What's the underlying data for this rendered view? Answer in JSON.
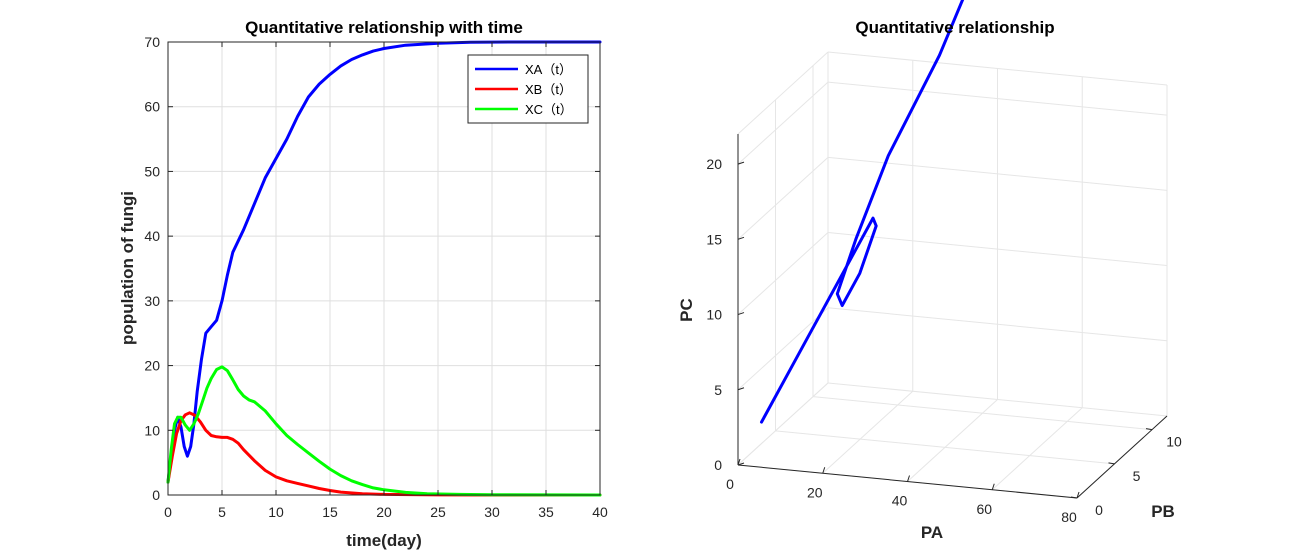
{
  "chart_data": [
    {
      "type": "line",
      "title": "Quantitative relationship with time",
      "xlabel": "time(day)",
      "ylabel": "population of fungi",
      "xlim": [
        0,
        40
      ],
      "ylim": [
        0,
        70
      ],
      "xticks": [
        "0",
        "5",
        "10",
        "15",
        "20",
        "25",
        "30",
        "35",
        "40"
      ],
      "yticks": [
        "0",
        "10",
        "20",
        "30",
        "40",
        "50",
        "60",
        "70"
      ],
      "grid": true,
      "legend": "top-right",
      "series": [
        {
          "name": "XA（t）",
          "color": "#0000ff",
          "points": [
            [
              0,
              2
            ],
            [
              0.3,
              6
            ],
            [
              0.6,
              10
            ],
            [
              0.9,
              12
            ],
            [
              1.2,
              10.5
            ],
            [
              1.5,
              7.5
            ],
            [
              1.8,
              6
            ],
            [
              2.1,
              7.5
            ],
            [
              2.4,
              11
            ],
            [
              2.7,
              16
            ],
            [
              3.1,
              21
            ],
            [
              3.5,
              25
            ],
            [
              4.0,
              26
            ],
            [
              4.5,
              27
            ],
            [
              5.0,
              30
            ],
            [
              5.5,
              34
            ],
            [
              6.0,
              37.5
            ],
            [
              7.0,
              41
            ],
            [
              8.0,
              45
            ],
            [
              9.0,
              49
            ],
            [
              10.0,
              52
            ],
            [
              11.0,
              55
            ],
            [
              12.0,
              58.5
            ],
            [
              13.0,
              61.5
            ],
            [
              14.0,
              63.5
            ],
            [
              15.0,
              65
            ],
            [
              16.0,
              66.3
            ],
            [
              17.0,
              67.3
            ],
            [
              18.0,
              68
            ],
            [
              19.0,
              68.6
            ],
            [
              20.0,
              69
            ],
            [
              22.0,
              69.5
            ],
            [
              25.0,
              69.8
            ],
            [
              28.0,
              69.95
            ],
            [
              32.0,
              70
            ],
            [
              40.0,
              70
            ]
          ]
        },
        {
          "name": "XB（t）",
          "color": "#ff0000",
          "points": [
            [
              0,
              2
            ],
            [
              0.4,
              6
            ],
            [
              0.8,
              9.5
            ],
            [
              1.2,
              11.5
            ],
            [
              1.6,
              12.4
            ],
            [
              2.0,
              12.7
            ],
            [
              2.5,
              12.3
            ],
            [
              3.0,
              11.3
            ],
            [
              3.5,
              10
            ],
            [
              4.0,
              9.2
            ],
            [
              4.5,
              9
            ],
            [
              5.0,
              8.9
            ],
            [
              5.5,
              8.9
            ],
            [
              6.0,
              8.6
            ],
            [
              6.5,
              8
            ],
            [
              7.0,
              7
            ],
            [
              8.0,
              5.3
            ],
            [
              9.0,
              3.8
            ],
            [
              10.0,
              2.8
            ],
            [
              11.0,
              2.2
            ],
            [
              12.0,
              1.8
            ],
            [
              13.0,
              1.4
            ],
            [
              14.0,
              1
            ],
            [
              15.0,
              0.7
            ],
            [
              16.0,
              0.45
            ],
            [
              18.0,
              0.2
            ],
            [
              20.0,
              0.1
            ],
            [
              25.0,
              0.02
            ],
            [
              30.0,
              0
            ],
            [
              40.0,
              0
            ]
          ]
        },
        {
          "name": "XC（t）",
          "color": "#00ff00",
          "points": [
            [
              0,
              2
            ],
            [
              0.3,
              7
            ],
            [
              0.6,
              11
            ],
            [
              0.9,
              12
            ],
            [
              1.2,
              12
            ],
            [
              1.6,
              10.8
            ],
            [
              2.0,
              10
            ],
            [
              2.4,
              11
            ],
            [
              2.8,
              12.5
            ],
            [
              3.2,
              14.5
            ],
            [
              3.6,
              16.5
            ],
            [
              4.0,
              18
            ],
            [
              4.5,
              19.4
            ],
            [
              5.0,
              19.8
            ],
            [
              5.5,
              19.2
            ],
            [
              6.0,
              17.8
            ],
            [
              6.5,
              16.3
            ],
            [
              7.0,
              15.3
            ],
            [
              7.5,
              14.7
            ],
            [
              8.0,
              14.4
            ],
            [
              9.0,
              13
            ],
            [
              10.0,
              11
            ],
            [
              11.0,
              9.2
            ],
            [
              12.0,
              7.8
            ],
            [
              13.0,
              6.5
            ],
            [
              14.0,
              5.2
            ],
            [
              15.0,
              4
            ],
            [
              16.0,
              3
            ],
            [
              17.0,
              2.2
            ],
            [
              18.0,
              1.6
            ],
            [
              19.0,
              1.1
            ],
            [
              20.0,
              0.8
            ],
            [
              22.0,
              0.4
            ],
            [
              24.0,
              0.2
            ],
            [
              27.0,
              0.1
            ],
            [
              30.0,
              0.05
            ],
            [
              40.0,
              0
            ]
          ]
        }
      ]
    },
    {
      "type": "line",
      "title": "Quantitative relationship",
      "xlabel": "PA",
      "ylabel": "PB",
      "zlabel": "PC",
      "xlim": [
        0,
        80
      ],
      "ylim": [
        0,
        12
      ],
      "zlim": [
        0,
        22
      ],
      "xticks": [
        "0",
        "20",
        "40",
        "60",
        "80"
      ],
      "yticks": [
        "0",
        "5",
        "10"
      ],
      "zticks": [
        "0",
        "5",
        "10",
        "15",
        "20"
      ],
      "grid": true,
      "series": [
        {
          "name": "",
          "color": "#0000ff",
          "points3d": [
            [
              2,
              2,
              2
            ],
            [
              6,
              6,
              6
            ],
            [
              10,
              10,
              10
            ],
            [
              11.5,
              11.5,
              11.5
            ],
            [
              10.5,
              12.5,
              10.5
            ],
            [
              7.5,
              12,
              7.5
            ],
            [
              6,
              10.5,
              6
            ],
            [
              7.5,
              9,
              7.5
            ],
            [
              11,
              9.5,
              11
            ],
            [
              16,
              11,
              16
            ],
            [
              21,
              15,
              21
            ],
            [
              26,
              17,
              26
            ],
            [
              30,
              17,
              30
            ],
            [
              35,
              15,
              35
            ],
            [
              38,
              14.5,
              38
            ],
            [
              41,
              14,
              41
            ],
            [
              45,
              12.5,
              45
            ],
            [
              50,
              10.5,
              50
            ],
            [
              55,
              8.5,
              55
            ],
            [
              60,
              6.2,
              60
            ],
            [
              65,
              3.8,
              65
            ],
            [
              67.5,
              2.2,
              67.5
            ],
            [
              69,
              1.3,
              69
            ],
            [
              70,
              0,
              70
            ]
          ]
        }
      ]
    }
  ]
}
